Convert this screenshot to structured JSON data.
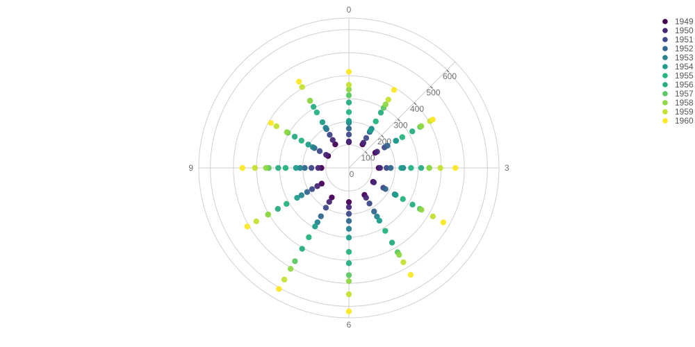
{
  "chart_data": {
    "type": "scatter",
    "subtype": "polar",
    "angular_axis": {
      "period": 12,
      "direction": "clockwise",
      "zero_at": "top",
      "tick_labels": [
        "0",
        "3",
        "6",
        "9"
      ],
      "tick_values": [
        0,
        3,
        6,
        9
      ]
    },
    "radial_axis": {
      "range": [
        0,
        650
      ],
      "tick_values": [
        0,
        100,
        200,
        300,
        400,
        500,
        600
      ],
      "tick_labels": [
        "0",
        "100",
        "200",
        "300",
        "400",
        "500",
        "600"
      ],
      "angle_deg": 45
    },
    "grid": true,
    "legend_position": "top-right",
    "categories": [
      0,
      1,
      2,
      3,
      4,
      5,
      6,
      7,
      8,
      9,
      10,
      11
    ],
    "series": [
      {
        "name": "1949",
        "color": "#440154",
        "values": [
          112,
          118,
          132,
          129,
          121,
          135,
          148,
          148,
          136,
          119,
          104,
          118
        ]
      },
      {
        "name": "1950",
        "color": "#482777",
        "values": [
          115,
          126,
          141,
          135,
          125,
          149,
          170,
          170,
          158,
          133,
          114,
          140
        ]
      },
      {
        "name": "1951",
        "color": "#3f4a8a",
        "values": [
          145,
          150,
          178,
          163,
          172,
          178,
          199,
          199,
          184,
          162,
          146,
          166
        ]
      },
      {
        "name": "1952",
        "color": "#31678e",
        "values": [
          171,
          180,
          193,
          181,
          183,
          218,
          230,
          242,
          209,
          191,
          172,
          194
        ]
      },
      {
        "name": "1953",
        "color": "#26838f",
        "values": [
          196,
          196,
          236,
          235,
          229,
          243,
          264,
          272,
          237,
          211,
          180,
          201
        ]
      },
      {
        "name": "1954",
        "color": "#1f9d8a",
        "values": [
          204,
          188,
          235,
          227,
          234,
          264,
          302,
          293,
          259,
          229,
          203,
          229
        ]
      },
      {
        "name": "1955",
        "color": "#24b47f",
        "values": [
          242,
          233,
          267,
          269,
          270,
          315,
          364,
          347,
          312,
          274,
          237,
          278
        ]
      },
      {
        "name": "1956",
        "color": "#27ad81",
        "values": [
          284,
          277,
          317,
          313,
          318,
          374,
          413,
          405,
          355,
          306,
          271,
          306
        ]
      },
      {
        "name": "1957",
        "color": "#5cc863",
        "values": [
          315,
          301,
          356,
          348,
          355,
          422,
          465,
          467,
          404,
          347,
          305,
          336
        ]
      },
      {
        "name": "1958",
        "color": "#8fd744",
        "values": [
          340,
          318,
          362,
          348,
          363,
          435,
          491,
          505,
          404,
          359,
          310,
          337
        ]
      },
      {
        "name": "1959",
        "color": "#c4e032",
        "values": [
          360,
          342,
          406,
          396,
          420,
          472,
          548,
          559,
          463,
          407,
          362,
          405
        ]
      },
      {
        "name": "1960",
        "color": "#fde725",
        "values": [
          417,
          391,
          419,
          461,
          472,
          535,
          622,
          606,
          508,
          461,
          390,
          432
        ]
      }
    ]
  }
}
